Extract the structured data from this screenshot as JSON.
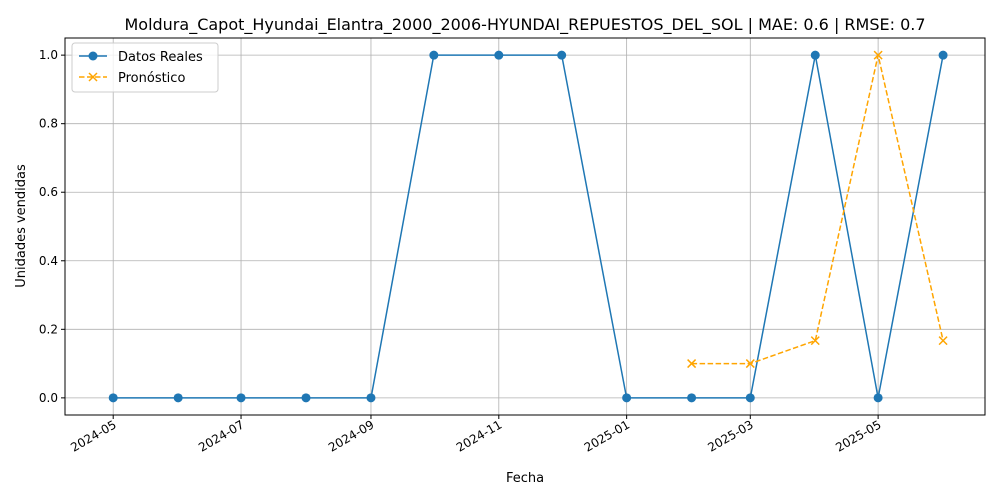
{
  "chart_data": {
    "type": "line",
    "title": "Moldura_Capot_Hyundai_Elantra_2000_2006-HYUNDAI_REPUESTOS_DEL_SOL | MAE: 0.6 | RMSE: 0.7",
    "xlabel": "Fecha",
    "ylabel": "Unidades vendidas",
    "xlim": [
      "2024-04-08",
      "2025-06-21"
    ],
    "ylim": [
      -0.05,
      1.05
    ],
    "grid": true,
    "legend_position": "top-left",
    "x_ticks": [
      "2024-05",
      "2024-07",
      "2024-09",
      "2024-11",
      "2025-01",
      "2025-03",
      "2025-05"
    ],
    "y_ticks": [
      "0.0",
      "0.2",
      "0.4",
      "0.6",
      "0.8",
      "1.0"
    ],
    "series": [
      {
        "name": "Datos Reales",
        "color": "#1f77b4",
        "marker": "circle",
        "linestyle": "solid",
        "x": [
          "2024-05-01",
          "2024-06-01",
          "2024-07-01",
          "2024-08-01",
          "2024-09-01",
          "2024-10-01",
          "2024-11-01",
          "2024-12-01",
          "2025-01-01",
          "2025-02-01",
          "2025-03-01",
          "2025-04-01",
          "2025-05-01",
          "2025-06-01"
        ],
        "values": [
          0,
          0,
          0,
          0,
          0,
          1,
          1,
          1,
          0,
          0,
          0,
          1,
          0,
          1
        ]
      },
      {
        "name": "Pronóstico",
        "color": "#ffa500",
        "marker": "x",
        "linestyle": "dashed",
        "x": [
          "2025-02-01",
          "2025-03-01",
          "2025-04-01",
          "2025-05-01",
          "2025-06-01"
        ],
        "values": [
          0.1,
          0.1,
          0.167,
          1.0,
          0.167
        ]
      }
    ]
  }
}
